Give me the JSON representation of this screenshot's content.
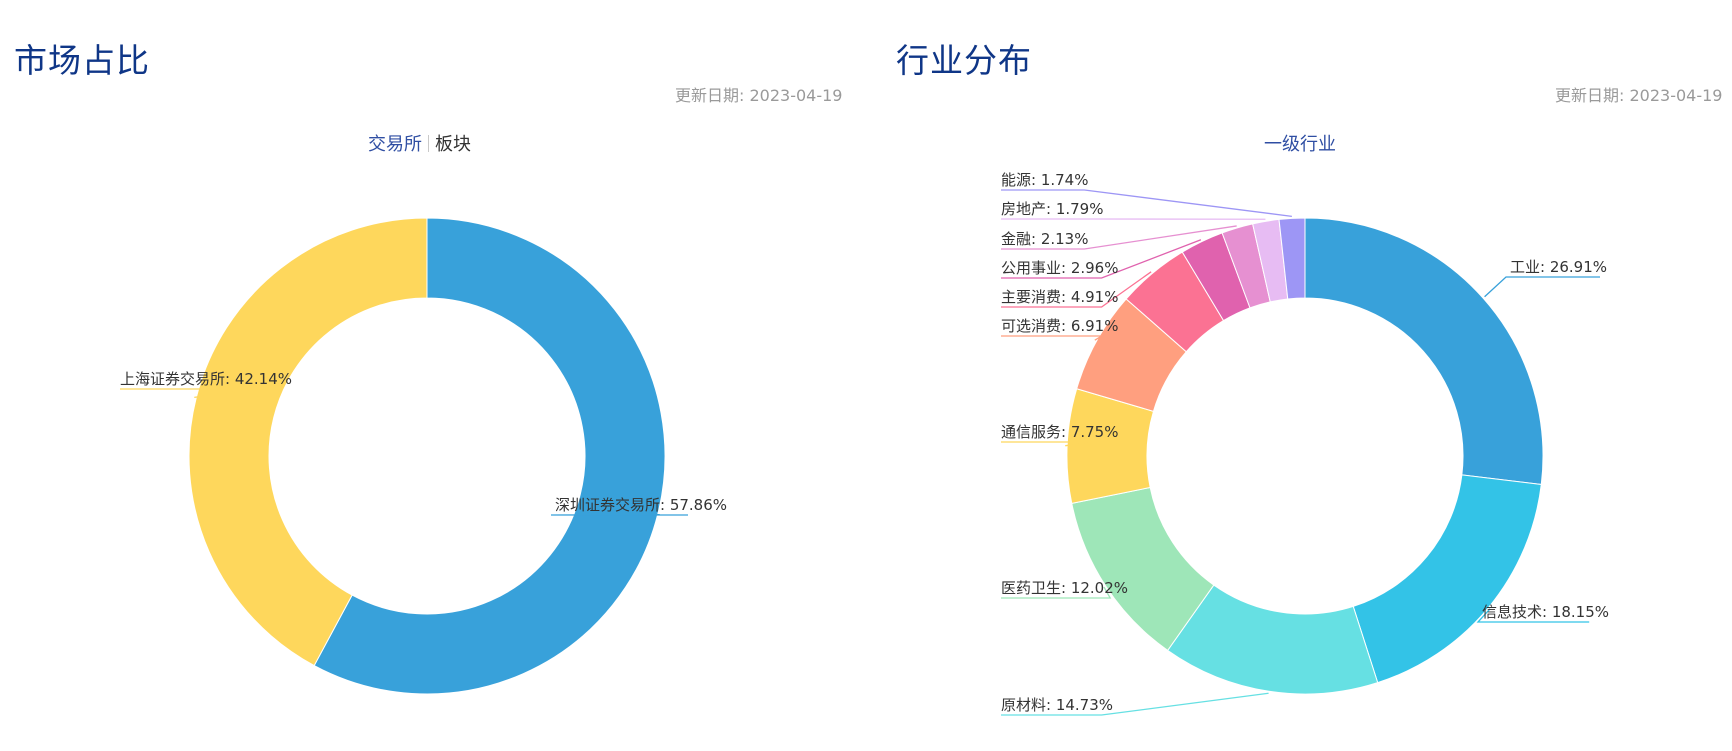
{
  "left": {
    "title": "市场占比",
    "update_label": "更新日期:",
    "update_date": "2023-04-19",
    "tabs": [
      {
        "label": "交易所"
      },
      {
        "label": "板块"
      }
    ]
  },
  "right": {
    "title": "行业分布",
    "update_label": "更新日期:",
    "update_date": "2023-04-19",
    "subtitle": "一级行业"
  },
  "chart_data": [
    {
      "type": "pie",
      "subtype": "donut",
      "title": "",
      "slices": [
        {
          "name": "深圳证券交易所",
          "value": 57.86,
          "label": "深圳证券交易所: 57.86%",
          "color": "#38a1da"
        },
        {
          "name": "上海证券交易所",
          "value": 42.14,
          "label": "上海证券交易所: 42.14%",
          "color": "#fed75c"
        }
      ]
    },
    {
      "type": "pie",
      "subtype": "donut",
      "title": "一级行业",
      "slices": [
        {
          "name": "工业",
          "value": 26.91,
          "label": "工业: 26.91%",
          "color": "#38a1da"
        },
        {
          "name": "信息技术",
          "value": 18.15,
          "label": "信息技术: 18.15%",
          "color": "#33c3e7"
        },
        {
          "name": "原材料",
          "value": 14.73,
          "label": "原材料: 14.73%",
          "color": "#66e0e3"
        },
        {
          "name": "医药卫生",
          "value": 12.02,
          "label": "医药卫生: 12.02%",
          "color": "#9ee6b8"
        },
        {
          "name": "通信服务",
          "value": 7.75,
          "label": "通信服务: 7.75%",
          "color": "#fed75c"
        },
        {
          "name": "可选消费",
          "value": 6.91,
          "label": "可选消费: 6.91%",
          "color": "#ff9f7f"
        },
        {
          "name": "主要消费",
          "value": 4.91,
          "label": "主要消费: 4.91%",
          "color": "#fb7293"
        },
        {
          "name": "公用事业",
          "value": 2.96,
          "label": "公用事业: 2.96%",
          "color": "#e062ae"
        },
        {
          "name": "金融",
          "value": 2.13,
          "label": "金融: 2.13%",
          "color": "#e690d1"
        },
        {
          "name": "房地产",
          "value": 1.79,
          "label": "房地产: 1.79%",
          "color": "#e7bcf3"
        },
        {
          "name": "能源",
          "value": 1.74,
          "label": "能源: 1.74%",
          "color": "#9d96f5"
        }
      ]
    }
  ]
}
